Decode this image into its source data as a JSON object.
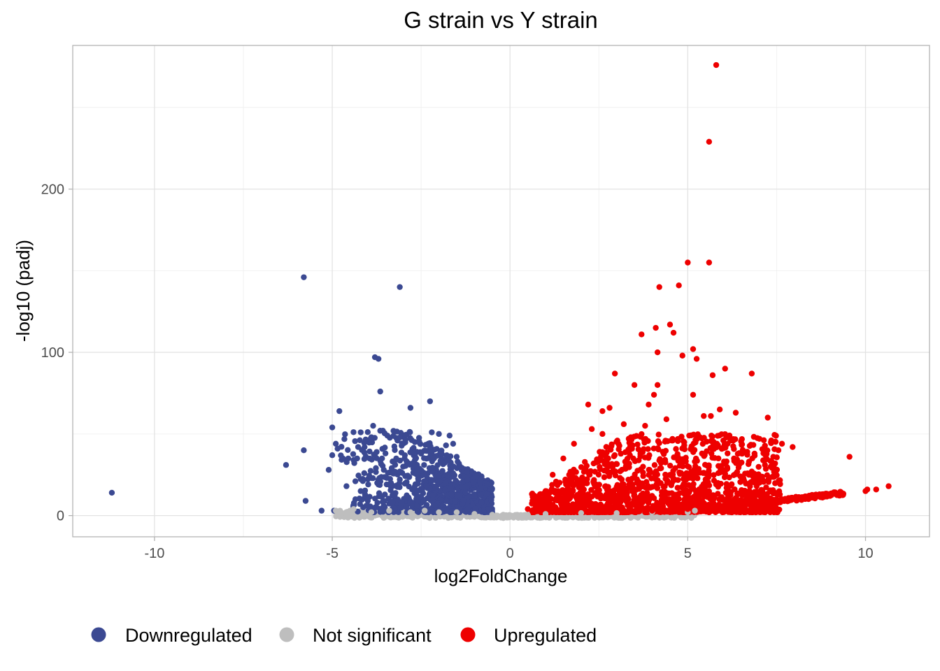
{
  "chart_data": {
    "type": "scatter",
    "title": "G strain vs Y strain",
    "xlabel": "log2FoldChange",
    "ylabel": "-log10 (padj)",
    "xlim": [
      -12.3,
      11.8
    ],
    "ylim": [
      -13,
      288
    ],
    "xticks": [
      -10,
      -5,
      0,
      5,
      10
    ],
    "xtick_labels": [
      "-10",
      "-5",
      "0",
      "5",
      "10"
    ],
    "yticks": [
      0,
      100,
      200
    ],
    "ytick_labels": [
      "0",
      "100",
      "200"
    ],
    "grid": true,
    "legend_position": "bottom",
    "point_radius_hint": "small",
    "series": [
      {
        "name": "Downregulated",
        "color": "#3B4992",
        "points": [
          [
            -11.2,
            14
          ],
          [
            -6.3,
            31
          ],
          [
            -5.8,
            146
          ],
          [
            -5.8,
            40
          ],
          [
            -5.75,
            9
          ],
          [
            -5.3,
            3
          ],
          [
            -5.1,
            28
          ],
          [
            -5.0,
            37
          ],
          [
            -5.0,
            54
          ],
          [
            -4.95,
            3
          ],
          [
            -4.9,
            44
          ],
          [
            -4.85,
            41
          ],
          [
            -4.8,
            64
          ],
          [
            -4.7,
            35
          ],
          [
            -4.55,
            35
          ],
          [
            -4.4,
            34
          ],
          [
            -4.35,
            21
          ],
          [
            -4.35,
            10
          ],
          [
            -4.3,
            35
          ],
          [
            -4.2,
            51
          ],
          [
            -4.1,
            26
          ],
          [
            -4.0,
            9
          ],
          [
            -4.0,
            6
          ],
          [
            -3.95,
            35
          ],
          [
            -3.9,
            48
          ],
          [
            -3.85,
            55
          ],
          [
            -3.8,
            97
          ],
          [
            -3.7,
            96
          ],
          [
            -3.65,
            76
          ],
          [
            -3.6,
            35
          ],
          [
            -3.55,
            28
          ],
          [
            -3.45,
            49
          ],
          [
            -3.35,
            20
          ],
          [
            -3.3,
            8
          ],
          [
            -3.2,
            35
          ],
          [
            -3.1,
            140
          ],
          [
            -3.1,
            27
          ],
          [
            -3.0,
            30
          ],
          [
            -2.8,
            66
          ],
          [
            -2.6,
            26
          ],
          [
            -2.5,
            38
          ],
          [
            -2.3,
            44
          ],
          [
            -2.25,
            70
          ],
          [
            -2.2,
            51
          ],
          [
            -2.15,
            35
          ],
          [
            -2.0,
            50
          ],
          [
            -1.8,
            43
          ],
          [
            -1.7,
            49
          ],
          [
            -1.6,
            44
          ],
          [
            -1.5,
            36
          ],
          [
            -1.4,
            30
          ],
          [
            -1.3,
            24
          ],
          [
            -1.2,
            22
          ],
          [
            -1.0,
            12
          ],
          [
            -0.8,
            8
          ],
          [
            -0.6,
            4
          ],
          [
            -4.6,
            18
          ],
          [
            -4.2,
            15
          ],
          [
            -3.9,
            23
          ],
          [
            -3.7,
            19
          ]
        ]
      },
      {
        "name": "Not significant",
        "color": "#BEBEBE",
        "points": [
          [
            -4.9,
            3
          ],
          [
            -4.5,
            3
          ],
          [
            -4.4,
            4
          ],
          [
            -3.9,
            2
          ],
          [
            -3.4,
            3
          ],
          [
            -2.8,
            2
          ],
          [
            -2.4,
            3
          ],
          [
            -2.0,
            2
          ],
          [
            -1.5,
            2
          ],
          [
            -1.0,
            1
          ],
          [
            -0.5,
            0.5
          ],
          [
            0,
            0
          ],
          [
            0.5,
            0.5
          ],
          [
            1.0,
            1
          ],
          [
            2.0,
            1.5
          ],
          [
            3.0,
            1.5
          ],
          [
            4.0,
            2
          ],
          [
            5.0,
            2
          ],
          [
            5.2,
            3
          ]
        ]
      },
      {
        "name": "Upregulated",
        "color": "#EE0000",
        "points": [
          [
            5.8,
            276
          ],
          [
            5.6,
            229
          ],
          [
            5.0,
            155
          ],
          [
            5.6,
            155
          ],
          [
            4.2,
            140
          ],
          [
            4.75,
            141
          ],
          [
            4.1,
            115
          ],
          [
            4.5,
            117
          ],
          [
            3.7,
            111
          ],
          [
            4.6,
            112
          ],
          [
            4.15,
            100
          ],
          [
            4.85,
            98
          ],
          [
            5.15,
            102
          ],
          [
            5.25,
            96
          ],
          [
            6.05,
            90
          ],
          [
            5.7,
            86
          ],
          [
            6.8,
            87
          ],
          [
            2.95,
            87
          ],
          [
            3.5,
            80
          ],
          [
            4.15,
            80
          ],
          [
            4.05,
            74
          ],
          [
            5.15,
            74
          ],
          [
            3.9,
            68
          ],
          [
            2.8,
            66
          ],
          [
            2.2,
            68
          ],
          [
            2.6,
            64
          ],
          [
            6.35,
            63
          ],
          [
            5.9,
            65
          ],
          [
            5.65,
            61
          ],
          [
            5.45,
            61
          ],
          [
            7.25,
            60
          ],
          [
            6.0,
            46
          ],
          [
            7.35,
            46
          ],
          [
            7.65,
            44
          ],
          [
            7.95,
            42
          ],
          [
            7.55,
            40
          ],
          [
            9.55,
            36
          ],
          [
            10.65,
            18
          ],
          [
            10.3,
            16
          ],
          [
            10.05,
            16
          ],
          [
            10.0,
            15
          ],
          [
            9.3,
            13
          ],
          [
            8.9,
            12
          ],
          [
            8.5,
            11
          ],
          [
            8.0,
            10
          ],
          [
            7.5,
            9
          ],
          [
            7.0,
            8
          ],
          [
            6.5,
            7
          ],
          [
            6.0,
            6
          ],
          [
            5.5,
            5
          ],
          [
            5.0,
            4
          ],
          [
            4.5,
            3.5
          ],
          [
            4.0,
            3
          ],
          [
            1.0,
            15
          ],
          [
            1.2,
            25
          ],
          [
            1.5,
            35
          ],
          [
            1.8,
            44
          ],
          [
            2.3,
            53
          ],
          [
            2.6,
            50
          ],
          [
            3.2,
            56
          ],
          [
            3.4,
            48
          ],
          [
            3.8,
            55
          ],
          [
            4.4,
            59
          ],
          [
            4.9,
            43
          ],
          [
            5.4,
            38
          ],
          [
            6.3,
            35
          ],
          [
            6.8,
            27
          ],
          [
            7.1,
            22
          ],
          [
            0.5,
            4
          ],
          [
            0.8,
            10
          ]
        ]
      }
    ]
  }
}
